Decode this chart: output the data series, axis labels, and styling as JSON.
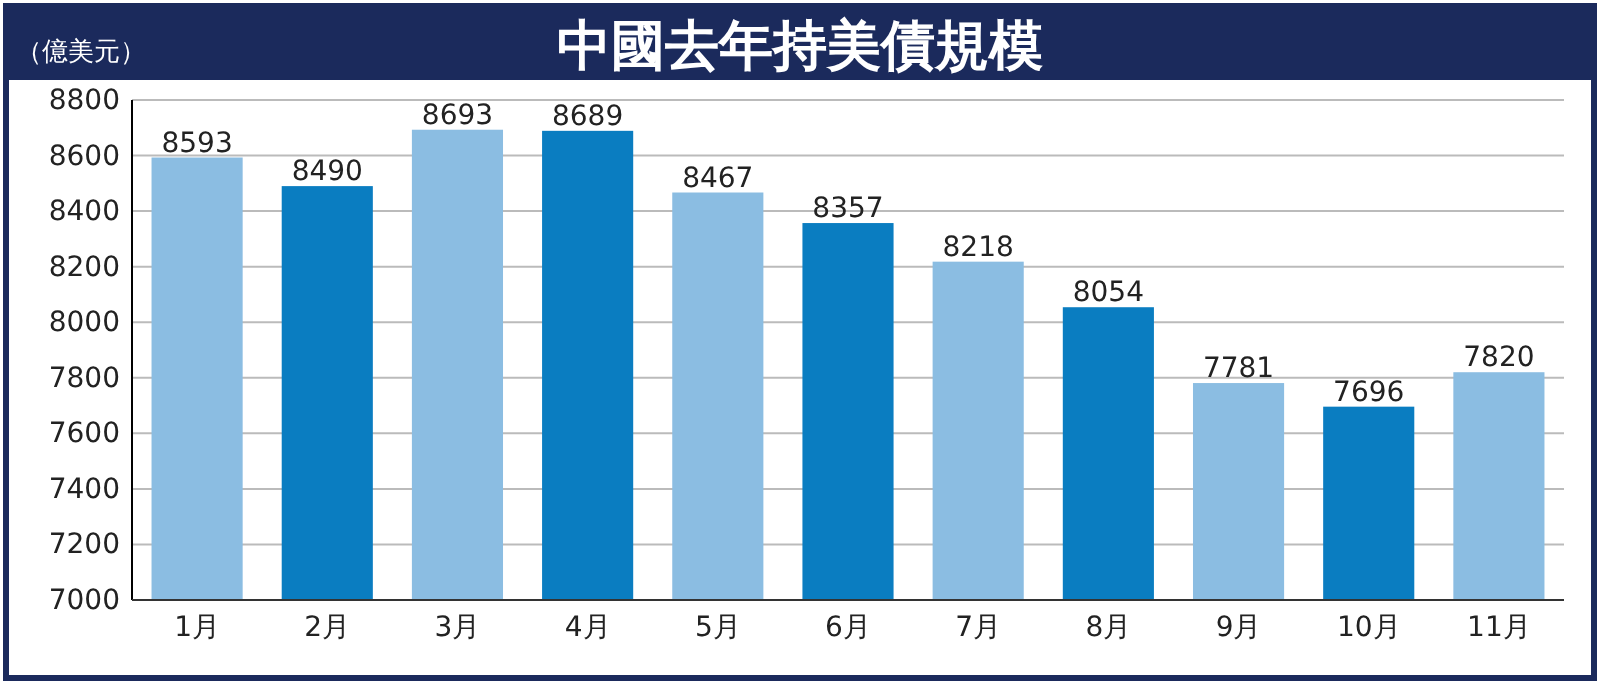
{
  "chart_data": {
    "type": "bar",
    "title": "中國去年持美債規模",
    "ylabel": "（億美元）",
    "categories": [
      "1月",
      "2月",
      "3月",
      "4月",
      "5月",
      "6月",
      "7月",
      "8月",
      "9月",
      "10月",
      "11月"
    ],
    "values": [
      8593,
      8490,
      8693,
      8689,
      8467,
      8357,
      8218,
      8054,
      7781,
      7696,
      7820
    ],
    "colors": [
      "#8bbde2",
      "#0a7dc1",
      "#8bbde2",
      "#0a7dc1",
      "#8bbde2",
      "#0a7dc1",
      "#8bbde2",
      "#0a7dc1",
      "#8bbde2",
      "#0a7dc1",
      "#8bbde2"
    ],
    "ylim": [
      7000,
      8800
    ],
    "yticks": [
      7000,
      7200,
      7400,
      7600,
      7800,
      8000,
      8200,
      8400,
      8600,
      8800
    ],
    "grid": "y",
    "data_labels": true
  }
}
